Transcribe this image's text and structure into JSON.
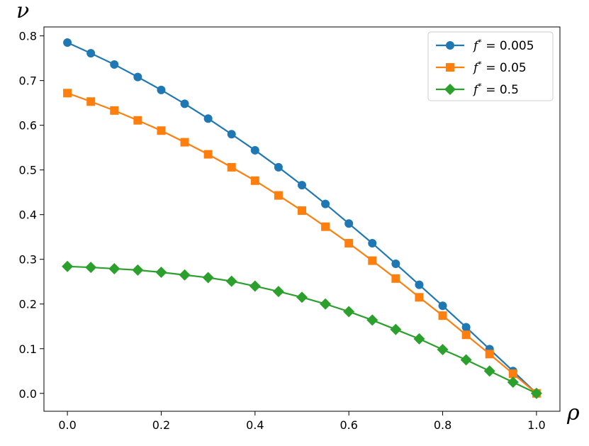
{
  "chart_data": {
    "type": "line",
    "title": "",
    "xlabel": "ρ",
    "ylabel": "ν",
    "xlim": [
      -0.05,
      1.05
    ],
    "ylim": [
      -0.04,
      0.82
    ],
    "x_ticks": [
      0.0,
      0.2,
      0.4,
      0.6,
      0.8,
      1.0
    ],
    "x_tick_labels": [
      "0.0",
      "0.2",
      "0.4",
      "0.6",
      "0.8",
      "1.0"
    ],
    "y_ticks": [
      0.0,
      0.1,
      0.2,
      0.3,
      0.4,
      0.5,
      0.6,
      0.7,
      0.8
    ],
    "y_tick_labels": [
      "0.0",
      "0.1",
      "0.2",
      "0.3",
      "0.4",
      "0.5",
      "0.6",
      "0.7",
      "0.8"
    ],
    "grid": false,
    "legend_position": "top-right",
    "x": [
      0.0,
      0.05,
      0.1,
      0.15,
      0.2,
      0.25,
      0.3,
      0.35,
      0.4,
      0.45,
      0.5,
      0.55,
      0.6,
      0.65,
      0.7,
      0.75,
      0.8,
      0.85,
      0.9,
      0.95,
      1.0
    ],
    "series": [
      {
        "name": "f* = 0.005",
        "legend_prefix": "f",
        "legend_sup": "*",
        "legend_suffix": " = 0.005",
        "color": "#1f77b4",
        "marker": "circle",
        "values": [
          0.785,
          0.761,
          0.736,
          0.708,
          0.679,
          0.648,
          0.615,
          0.58,
          0.544,
          0.506,
          0.466,
          0.424,
          0.38,
          0.336,
          0.29,
          0.243,
          0.196,
          0.148,
          0.099,
          0.05,
          0.0
        ]
      },
      {
        "name": "f* = 0.05",
        "legend_prefix": "f",
        "legend_sup": "*",
        "legend_suffix": " = 0.05",
        "color": "#ff7f0e",
        "marker": "square",
        "values": [
          0.672,
          0.653,
          0.633,
          0.611,
          0.588,
          0.562,
          0.535,
          0.506,
          0.476,
          0.443,
          0.409,
          0.373,
          0.336,
          0.297,
          0.257,
          0.215,
          0.174,
          0.131,
          0.088,
          0.044,
          0.0
        ]
      },
      {
        "name": "f* = 0.5",
        "legend_prefix": "f",
        "legend_sup": "*",
        "legend_suffix": " = 0.5",
        "color": "#2ca02c",
        "marker": "diamond",
        "values": [
          0.284,
          0.282,
          0.279,
          0.276,
          0.271,
          0.265,
          0.259,
          0.251,
          0.24,
          0.228,
          0.215,
          0.2,
          0.183,
          0.164,
          0.143,
          0.122,
          0.098,
          0.075,
          0.05,
          0.025,
          0.0
        ]
      }
    ]
  }
}
